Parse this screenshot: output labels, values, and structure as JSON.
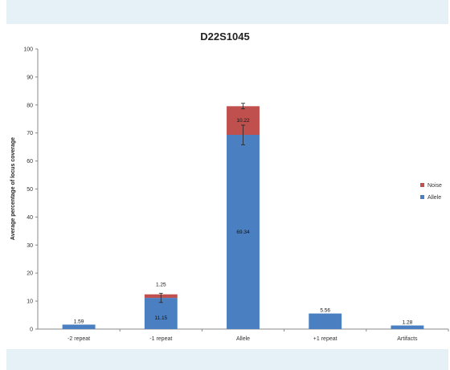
{
  "chart_data": {
    "type": "bar",
    "stacked": true,
    "title": "D22S1045",
    "xlabel": "",
    "ylabel": "Average percentage of locus coverage",
    "ylim": [
      0,
      100
    ],
    "yticks": [
      0,
      10,
      20,
      30,
      40,
      50,
      60,
      70,
      80,
      90,
      100
    ],
    "categories": [
      "-2 repeat",
      "-1 repeat",
      "Allele",
      "+1 repeat",
      "Artifacts"
    ],
    "series": [
      {
        "name": "Allele",
        "color": "#4a7fc1",
        "values": [
          1.59,
          11.15,
          69.34,
          5.56,
          1.28
        ]
      },
      {
        "name": "Noise",
        "color": "#c0504d",
        "values": [
          0,
          1.25,
          10.22,
          0,
          0
        ]
      }
    ],
    "data_labels": [
      [
        "1.59",
        "11.15",
        "69.34",
        "5.56",
        "1.28"
      ],
      [
        "",
        "1.25",
        "10.22",
        "",
        ""
      ]
    ],
    "error_bars": [
      {
        "category": "-1 repeat",
        "top": 11.15,
        "low": 9.5,
        "high": 12.8
      },
      {
        "category": "Allele",
        "top": 69.34,
        "low": 65.8,
        "high": 72.8
      },
      {
        "category": "Allele",
        "top": 79.56,
        "low": 78.6,
        "high": 80.6
      }
    ],
    "legend": {
      "position": "right",
      "entries": [
        "Noise",
        "Allele"
      ]
    },
    "grid": false
  }
}
